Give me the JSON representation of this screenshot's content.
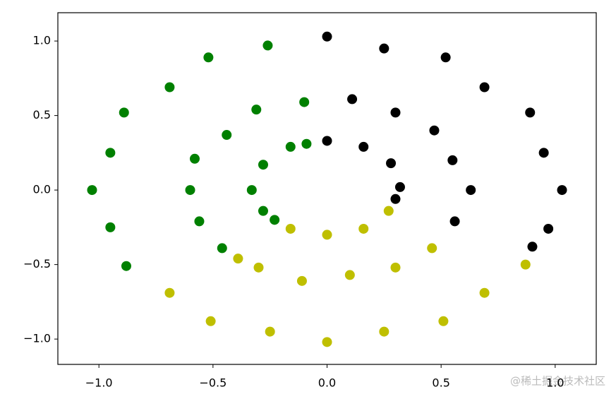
{
  "chart_data": {
    "type": "scatter",
    "xlim": [
      -1.18,
      1.18
    ],
    "ylim": [
      -1.17,
      1.19
    ],
    "xticks": [
      {
        "value": -1.0,
        "label": "−1.0"
      },
      {
        "value": -0.5,
        "label": "−0.5"
      },
      {
        "value": 0.0,
        "label": "0.0"
      },
      {
        "value": 0.5,
        "label": "0.5"
      },
      {
        "value": 1.0,
        "label": "1.0"
      }
    ],
    "yticks": [
      {
        "value": -1.0,
        "label": "−1.0"
      },
      {
        "value": -0.5,
        "label": "−0.5"
      },
      {
        "value": 0.0,
        "label": "0.0"
      },
      {
        "value": 0.5,
        "label": "0.5"
      },
      {
        "value": 1.0,
        "label": "1.0"
      }
    ],
    "series": [
      {
        "color": "#008000",
        "x": [
          -0.26,
          -0.52,
          -0.69,
          -0.89,
          -0.95,
          -1.03,
          -0.95,
          -0.88,
          -0.1,
          -0.31,
          -0.44,
          -0.58,
          -0.6,
          -0.56,
          -0.46,
          -0.09,
          -0.16,
          -0.28,
          -0.33,
          -0.28,
          -0.23
        ],
        "y": [
          0.97,
          0.89,
          0.69,
          0.52,
          0.25,
          0.0,
          -0.25,
          -0.51,
          0.59,
          0.54,
          0.37,
          0.21,
          0.0,
          -0.21,
          -0.39,
          0.31,
          0.29,
          0.17,
          0.0,
          -0.14,
          -0.2
        ]
      },
      {
        "color": "#000000",
        "x": [
          0.97,
          1.03,
          0.95,
          0.89,
          0.69,
          0.52,
          0.25,
          0.0,
          0.9,
          0.56,
          0.63,
          0.55,
          0.47,
          0.3,
          0.11,
          0.32,
          0.28,
          0.16,
          0.0,
          0.3
        ],
        "y": [
          -0.26,
          0.0,
          0.25,
          0.52,
          0.69,
          0.89,
          0.95,
          1.03,
          -0.38,
          -0.21,
          0.0,
          0.2,
          0.4,
          0.52,
          0.61,
          0.02,
          0.18,
          0.29,
          0.33,
          -0.06
        ]
      },
      {
        "color": "#bfbf00",
        "x": [
          -0.69,
          -0.51,
          -0.25,
          0.0,
          0.25,
          0.51,
          0.69,
          0.87,
          -0.39,
          -0.3,
          -0.11,
          0.1,
          0.3,
          0.46,
          -0.16,
          0.0,
          0.16,
          0.27
        ],
        "y": [
          -0.69,
          -0.88,
          -0.95,
          -1.02,
          -0.95,
          -0.88,
          -0.69,
          -0.5,
          -0.46,
          -0.52,
          -0.61,
          -0.57,
          -0.52,
          -0.39,
          -0.26,
          -0.3,
          -0.26,
          -0.14
        ]
      }
    ]
  },
  "watermark": "@稀土掘金技术社区"
}
